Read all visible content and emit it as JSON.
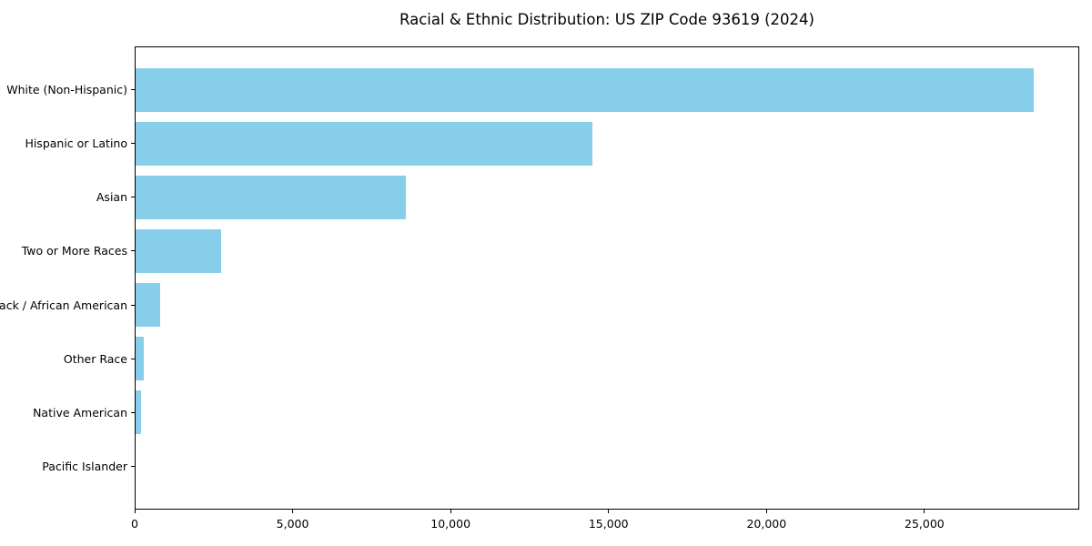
{
  "chart_data": {
    "type": "bar",
    "orientation": "horizontal",
    "title": "Racial & Ethnic Distribution: US ZIP Code 93619 (2024)",
    "categories": [
      "White (Non-Hispanic)",
      "Hispanic or Latino",
      "Asian",
      "Two or More Races",
      "Black / African American",
      "Other Race",
      "Native American",
      "Pacific Islander"
    ],
    "values": [
      28500,
      14500,
      8570,
      2720,
      790,
      270,
      180,
      0
    ],
    "xlabel": "",
    "ylabel": "",
    "xlim": [
      0,
      29900
    ],
    "x_ticks": [
      0,
      5000,
      10000,
      15000,
      20000,
      25000
    ],
    "x_tick_labels": [
      "0",
      "5,000",
      "10,000",
      "15,000",
      "20,000",
      "25,000"
    ],
    "grid": false,
    "legend": null,
    "colors": {
      "bar": "#87CEEB",
      "axis": "#000000",
      "background": "#FFFFFF",
      "text": "#000000"
    }
  }
}
